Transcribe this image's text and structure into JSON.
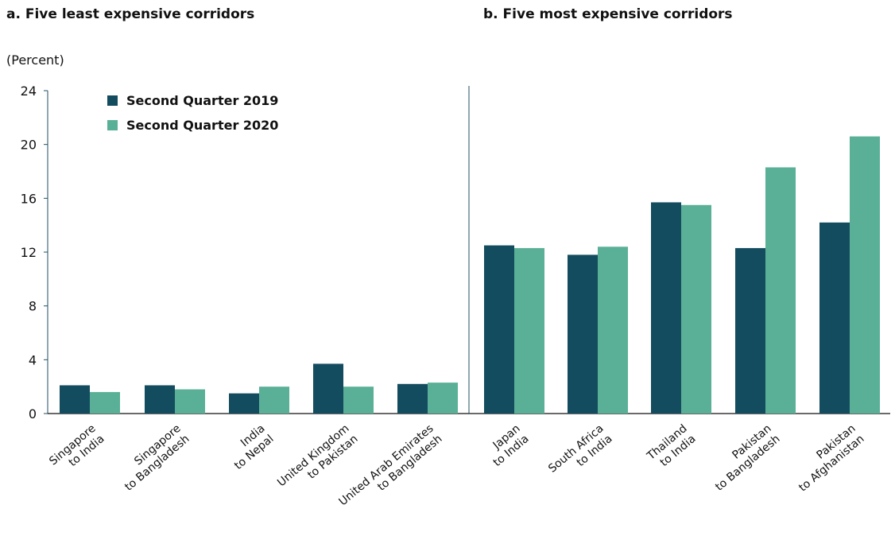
{
  "panels": {
    "a_title": "a. Five least expensive corridors",
    "b_title": "b. Five most expensive corridors"
  },
  "colors": {
    "series_2019": "#144c5f",
    "series_2020": "#5ab096",
    "axis": "#1f4f63"
  },
  "chart_data": {
    "type": "bar",
    "title": "",
    "ylabel": "(Percent)",
    "ylim": [
      0,
      24
    ],
    "yticks": [
      "0",
      "4",
      "8",
      "12",
      "16",
      "20",
      "24"
    ],
    "legend_position": "top-left",
    "categories": [
      [
        "Singapore",
        "to India"
      ],
      [
        "Singapore",
        "to Bangladesh"
      ],
      [
        "India",
        "to Nepal"
      ],
      [
        "United Kingdom",
        "to Pakistan"
      ],
      [
        "United Arab Emirates",
        "to Bangladesh"
      ],
      [
        "Japan",
        "to India"
      ],
      [
        "South Africa",
        "to India"
      ],
      [
        "Thailand",
        "to India"
      ],
      [
        "Pakistan",
        "to Bangladesh"
      ],
      [
        "Pakistan",
        "to Afghanistan"
      ]
    ],
    "series": [
      {
        "name": "Second Quarter 2019",
        "values": [
          2.1,
          2.1,
          1.5,
          3.7,
          2.2,
          12.5,
          11.8,
          15.7,
          12.3,
          14.2
        ]
      },
      {
        "name": "Second Quarter 2020",
        "values": [
          1.6,
          1.8,
          2.0,
          2.0,
          2.3,
          12.3,
          12.4,
          15.5,
          18.3,
          20.6
        ]
      }
    ]
  }
}
